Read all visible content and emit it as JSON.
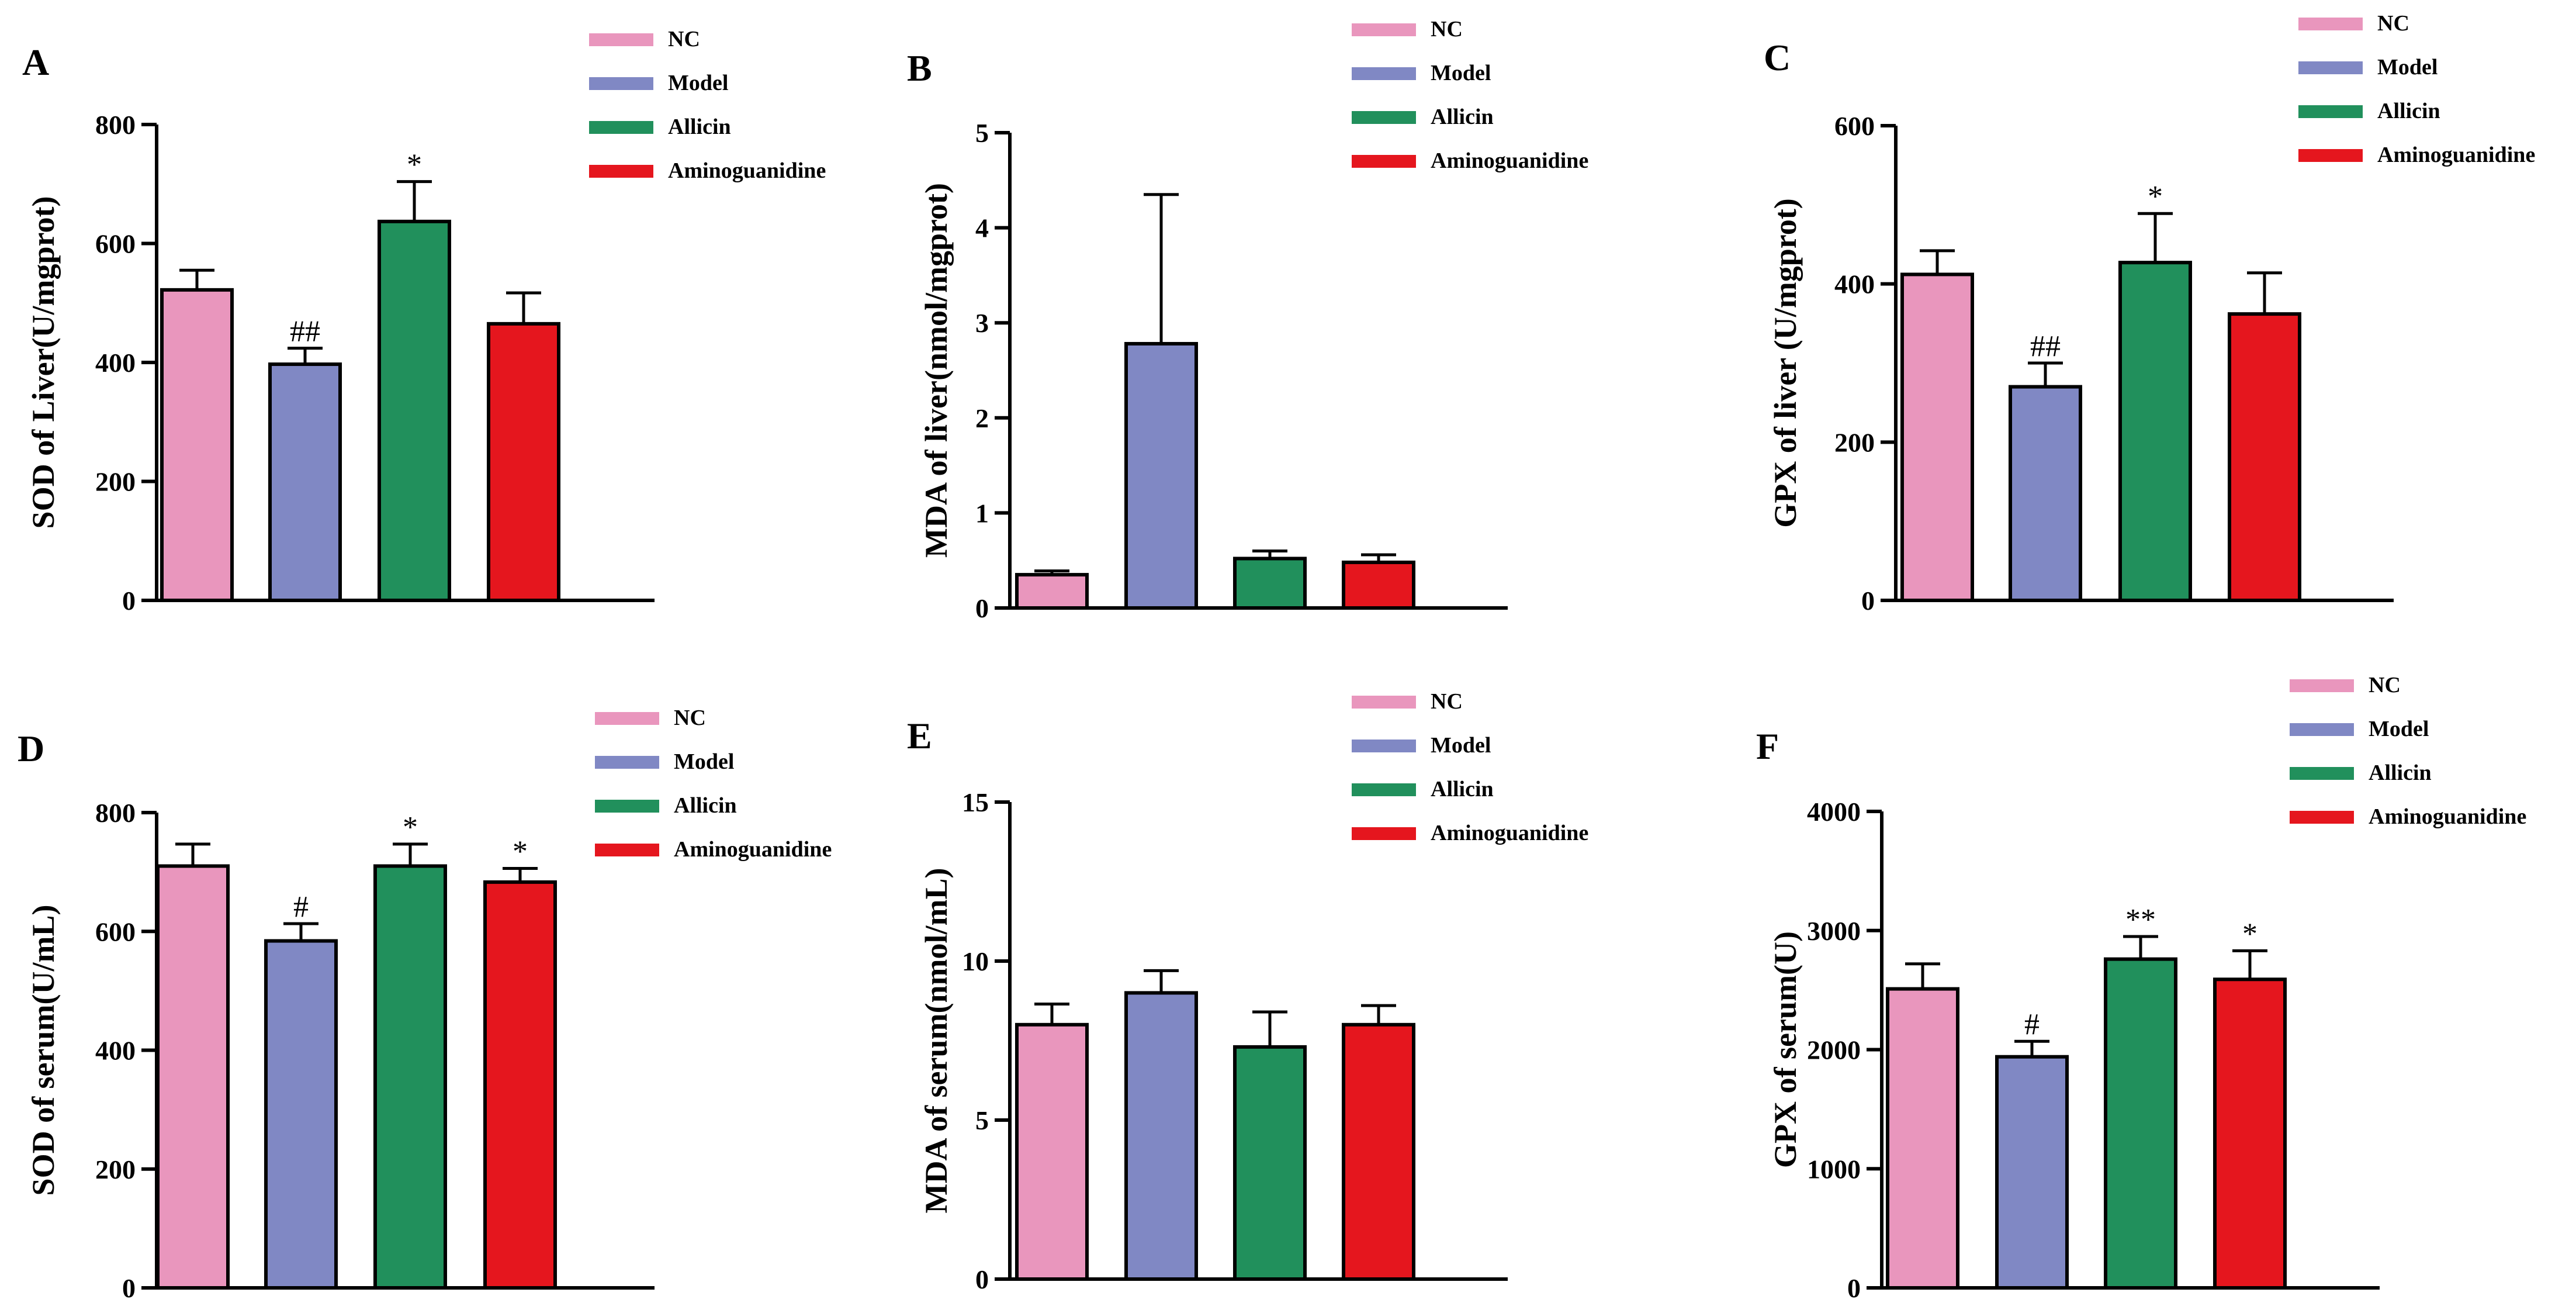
{
  "legend_colors": [
    "#E996BD",
    "#8088C4",
    "#21905C",
    "#E5161E"
  ],
  "chart_data": [
    {
      "type": "bar",
      "panel": "A",
      "categories": [
        "NC",
        "Model",
        "Allicin",
        "Aminoguanidine"
      ],
      "values": [
        522,
        397,
        637,
        465
      ],
      "errors": [
        33,
        27,
        67,
        52
      ],
      "significance": [
        "",
        "##",
        "*",
        ""
      ],
      "ylabel": "SOD of Liver(U/mgprot)",
      "ylim": [
        0,
        800
      ],
      "yticks": [
        0,
        200,
        400,
        600,
        800
      ]
    },
    {
      "type": "bar",
      "panel": "B",
      "categories": [
        "NC",
        "Model",
        "Allicin",
        "Aminoguanidine"
      ],
      "values": [
        0.35,
        2.78,
        0.52,
        0.48
      ],
      "errors": [
        0.04,
        1.57,
        0.08,
        0.08
      ],
      "significance": [
        "",
        "",
        "",
        ""
      ],
      "ylabel": "MDA of liver(nmol/mgprot)",
      "ylim": [
        0,
        5
      ],
      "yticks": [
        0,
        1,
        2,
        3,
        4,
        5
      ]
    },
    {
      "type": "bar",
      "panel": "C",
      "categories": [
        "NC",
        "Model",
        "Allicin",
        "Aminoguanidine"
      ],
      "values": [
        412,
        270,
        427,
        362
      ],
      "errors": [
        30,
        30,
        62,
        52
      ],
      "significance": [
        "",
        "##",
        "*",
        ""
      ],
      "ylabel": "GPX of liver (U/mgprot)",
      "ylim": [
        0,
        600
      ],
      "yticks": [
        0,
        200,
        400,
        600
      ]
    },
    {
      "type": "bar",
      "panel": "D",
      "categories": [
        "NC",
        "Model",
        "Allicin",
        "Aminoguanidine"
      ],
      "values": [
        710,
        584,
        710,
        683
      ],
      "errors": [
        37,
        29,
        37,
        23
      ],
      "significance": [
        "",
        "#",
        "*",
        "*"
      ],
      "ylabel": "SOD of serum(U/mL)",
      "ylim": [
        0,
        800
      ],
      "yticks": [
        0,
        200,
        400,
        600,
        800
      ]
    },
    {
      "type": "bar",
      "panel": "E",
      "categories": [
        "NC",
        "Model",
        "Allicin",
        "Aminoguanidine"
      ],
      "values": [
        8.0,
        9.0,
        7.3,
        8.0
      ],
      "errors": [
        0.65,
        0.7,
        1.1,
        0.6
      ],
      "significance": [
        "",
        "",
        "",
        ""
      ],
      "ylabel": "MDA of serum(nmol/mL)",
      "ylim": [
        0,
        15
      ],
      "yticks": [
        0,
        5,
        10,
        15
      ]
    },
    {
      "type": "bar",
      "panel": "F",
      "categories": [
        "NC",
        "Model",
        "Allicin",
        "Aminoguanidine"
      ],
      "values": [
        2510,
        1940,
        2760,
        2590
      ],
      "errors": [
        210,
        130,
        190,
        240
      ],
      "significance": [
        "",
        "#",
        "**",
        "*"
      ],
      "ylabel": "GPX of serum(U)",
      "ylim": [
        0,
        4000
      ],
      "yticks": [
        0,
        1000,
        2000,
        3000,
        4000
      ]
    }
  ]
}
